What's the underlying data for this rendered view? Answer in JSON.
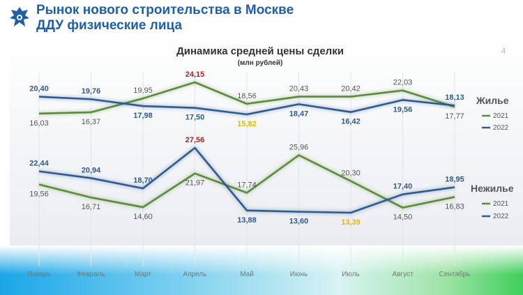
{
  "header": {
    "title_line1": "Рынок нового строительства в Москве",
    "title_line2": "ДДУ физические лица"
  },
  "page_number": "4",
  "colors": {
    "title_blue": "#1f5fa8",
    "series_2021": "#5a8a3a",
    "series_2022": "#2e5a8f",
    "label_dark": "#555555",
    "label_max": "#b22222",
    "label_min": "#e6b800"
  },
  "chart_data": [
    {
      "type": "line",
      "title": "Динамика средней цены сделки",
      "subtitle": "(млн рублей)",
      "group_label": "Жилье",
      "categories": [
        "Январь",
        "Февраль",
        "Март",
        "Апрель",
        "Май",
        "Июнь",
        "Июль",
        "Август",
        "Сентябрь"
      ],
      "series": [
        {
          "name": "2021",
          "color": "#5a8a3a",
          "values": [
            16.03,
            16.37,
            19.95,
            24.15,
            18.56,
            20.43,
            20.42,
            22.03,
            17.77
          ],
          "labels": [
            "16,03",
            "16,37",
            "19,95",
            "24,15",
            "18,56",
            "20,43",
            "20,42",
            "22,03",
            "17,77"
          ]
        },
        {
          "name": "2022",
          "color": "#2e5a8f",
          "values": [
            20.4,
            19.76,
            17.98,
            17.5,
            15.82,
            18.47,
            16.42,
            19.56,
            18.13
          ],
          "labels": [
            "20,40",
            "19,76",
            "17,98",
            "17,50",
            "15,82",
            "18,47",
            "16,42",
            "19,56",
            "18,13"
          ]
        }
      ],
      "ylim": [
        14,
        25
      ]
    },
    {
      "type": "line",
      "group_label": "Нежилье",
      "categories": [
        "Январь",
        "Февраль",
        "Март",
        "Апрель",
        "Май",
        "Июнь",
        "Июль",
        "Август",
        "Сентябрь"
      ],
      "series": [
        {
          "name": "2021",
          "color": "#5a8a3a",
          "values": [
            19.56,
            16.71,
            14.6,
            21.97,
            17.74,
            25.96,
            20.3,
            14.5,
            16.83
          ],
          "labels": [
            "19,56",
            "16,71",
            "14,60",
            "21,97",
            "17,74",
            "25,96",
            "20,30",
            "14,50",
            "16,83"
          ]
        },
        {
          "name": "2022",
          "color": "#2e5a8f",
          "values": [
            22.44,
            20.94,
            18.7,
            27.56,
            13.88,
            13.6,
            13.39,
            17.4,
            18.95
          ],
          "labels": [
            "22,44",
            "20,94",
            "18,70",
            "27,56",
            "13,88",
            "13,60",
            "13,39",
            "17,40",
            "18,95"
          ]
        }
      ],
      "ylim": [
        12,
        29
      ]
    }
  ]
}
